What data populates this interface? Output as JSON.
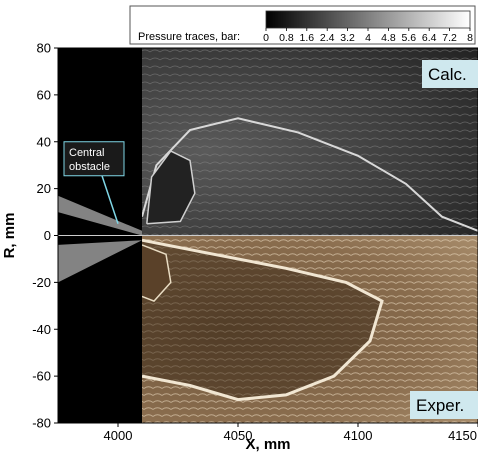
{
  "chart_data": {
    "type": "heatmap",
    "xlabel": "X, mm",
    "ylabel": "R, mm",
    "xlim": [
      3975,
      4150
    ],
    "ylim": [
      -80,
      80
    ],
    "x_ticks": [
      4000,
      4050,
      4100,
      4150
    ],
    "x_tick_labels": [
      "4000",
      "4050",
      "4100",
      "4150"
    ],
    "y_ticks": [
      -80,
      -60,
      -40,
      -20,
      0,
      20,
      40,
      60,
      80
    ],
    "y_tick_labels": [
      "-80",
      "-60",
      "-40",
      "-20",
      "0",
      "20",
      "40",
      "60",
      "80"
    ],
    "colorbar": {
      "label": "Pressure traces, bar:",
      "ticks": [
        "0",
        "0.8",
        "1.6",
        "2.4",
        "3.2",
        "4",
        "4.8",
        "5.6",
        "6.4",
        "7.2",
        "8"
      ],
      "range": [
        0,
        8
      ],
      "colors": [
        "#000000",
        "#ffffff"
      ]
    },
    "panels": {
      "upper_label": "Calc.",
      "lower_label": "Exper."
    },
    "annotation": {
      "text_lines": [
        "Central",
        "obstacle"
      ],
      "target": {
        "x": 4000,
        "y": 5
      }
    },
    "obstacle_end_x": 4010,
    "colors": {
      "calc_background": "#3a3a3a",
      "exper_background": "#9a8060",
      "obstacle": "#000000",
      "label_box": "#cfe8ee"
    }
  }
}
